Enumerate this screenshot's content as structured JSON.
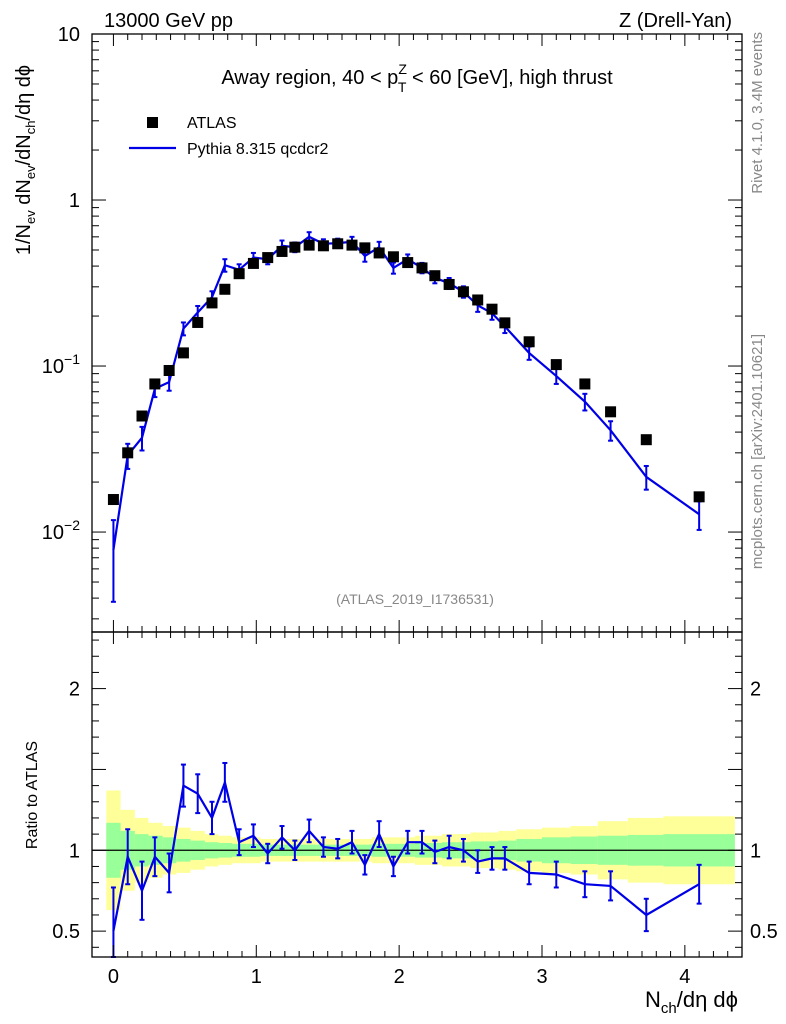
{
  "header": {
    "energy_label": "13000 GeV pp",
    "process_label": "Z (Drell-Yan)",
    "side_label_top": "Rivet 4.1.0,  3.4M events",
    "side_label_bottom": "mcplots.cern.ch [arXiv:2401.10621]",
    "analysis_id": "(ATLAS_2019_I1736531)"
  },
  "colors": {
    "mc_line": "#0000e6",
    "data_marker": "#000000",
    "band_outer": "#ffff99",
    "band_inner": "#99ff99",
    "watermark": "#888888"
  },
  "chart_data": [
    {
      "type": "scatter",
      "panel": "main",
      "title_parts": {
        "prefix": "Away region, 40 < p",
        "sup": "Z",
        "sub": "T",
        "suffix": " < 60 [GeV], high thrust"
      },
      "ylabel_parts": {
        "a": "1/N",
        "a_sub": "ev",
        "b": " dN",
        "b_sub": "ev",
        "c": "/dN",
        "c_sub": "ch",
        "d": "/dη dϕ"
      },
      "yscale": "log",
      "xlim": [
        -0.15,
        4.4
      ],
      "ylim": [
        0.0025,
        10
      ],
      "xticks": [
        0,
        1,
        2,
        3,
        4
      ],
      "yticks": [
        {
          "value": 10,
          "label": "10",
          "exp": ""
        },
        {
          "value": 1,
          "label": "1",
          "exp": ""
        },
        {
          "value": 0.1,
          "label": "10",
          "exp": "−1"
        },
        {
          "value": 0.01,
          "label": "10",
          "exp": "−2"
        }
      ],
      "legend_position": "top-left",
      "legend": [
        {
          "name": "ATLAS",
          "style": "square-marker"
        },
        {
          "name": "Pythia 8.315 qcdcr2",
          "style": "line"
        }
      ],
      "series": [
        {
          "name": "ATLAS",
          "x": [
            0.0,
            0.1,
            0.2,
            0.29,
            0.39,
            0.49,
            0.59,
            0.69,
            0.78,
            0.88,
            0.98,
            1.08,
            1.18,
            1.27,
            1.37,
            1.47,
            1.57,
            1.67,
            1.76,
            1.86,
            1.96,
            2.06,
            2.16,
            2.25,
            2.35,
            2.45,
            2.55,
            2.65,
            2.74,
            2.91,
            3.1,
            3.3,
            3.48,
            3.73,
            4.1
          ],
          "y": [
            0.0157,
            0.03,
            0.05,
            0.078,
            0.094,
            0.12,
            0.183,
            0.24,
            0.29,
            0.36,
            0.415,
            0.45,
            0.49,
            0.52,
            0.535,
            0.53,
            0.545,
            0.535,
            0.515,
            0.48,
            0.455,
            0.42,
            0.39,
            0.35,
            0.31,
            0.28,
            0.25,
            0.22,
            0.182,
            0.14,
            0.102,
            0.078,
            0.053,
            0.036,
            0.0163
          ]
        },
        {
          "name": "Pythia 8.315 qcdcr2",
          "x": [
            0.0,
            0.1,
            0.2,
            0.29,
            0.39,
            0.49,
            0.59,
            0.69,
            0.78,
            0.88,
            0.98,
            1.08,
            1.18,
            1.27,
            1.37,
            1.47,
            1.57,
            1.67,
            1.76,
            1.86,
            1.96,
            2.06,
            2.16,
            2.25,
            2.35,
            2.45,
            2.55,
            2.65,
            2.74,
            2.91,
            3.1,
            3.3,
            3.48,
            3.73,
            4.1
          ],
          "y": [
            0.0078,
            0.029,
            0.037,
            0.073,
            0.08,
            0.168,
            0.21,
            0.26,
            0.405,
            0.38,
            0.45,
            0.44,
            0.53,
            0.52,
            0.6,
            0.545,
            0.55,
            0.56,
            0.46,
            0.52,
            0.39,
            0.44,
            0.39,
            0.34,
            0.315,
            0.28,
            0.232,
            0.208,
            0.173,
            0.12,
            0.087,
            0.061,
            0.041,
            0.0215,
            0.0128
          ],
          "yerr": [
            0.004,
            0.005,
            0.006,
            0.008,
            0.009,
            0.015,
            0.02,
            0.022,
            0.035,
            0.03,
            0.03,
            0.03,
            0.04,
            0.035,
            0.04,
            0.035,
            0.035,
            0.04,
            0.035,
            0.04,
            0.03,
            0.03,
            0.028,
            0.025,
            0.024,
            0.022,
            0.02,
            0.018,
            0.015,
            0.011,
            0.009,
            0.007,
            0.0055,
            0.0035,
            0.0025
          ]
        }
      ]
    },
    {
      "type": "line",
      "panel": "ratio",
      "ylabel": "Ratio to ATLAS",
      "xlabel_parts": {
        "a": "N",
        "a_sub": "ch",
        "b": "/dη dϕ"
      },
      "xlim": [
        -0.15,
        4.4
      ],
      "ylim": [
        0.34,
        2.35
      ],
      "xticks": [
        0,
        1,
        2,
        3,
        4
      ],
      "yticks": [
        {
          "value": 2,
          "label": "2"
        },
        {
          "value": 1,
          "label": "1"
        },
        {
          "value": 0.5,
          "label": "0.5"
        }
      ],
      "reference_line": 1,
      "band_edges": [
        -0.05,
        0.05,
        0.15,
        0.245,
        0.345,
        0.44,
        0.54,
        0.64,
        0.735,
        0.83,
        0.93,
        1.03,
        1.13,
        1.225,
        1.32,
        1.42,
        1.52,
        1.62,
        1.715,
        1.81,
        1.91,
        2.01,
        2.11,
        2.205,
        2.3,
        2.4,
        2.5,
        2.6,
        2.695,
        2.82,
        3.0,
        3.2,
        3.39,
        3.6,
        3.85,
        4.35
      ],
      "band_outer": [
        0.37,
        0.25,
        0.2,
        0.17,
        0.15,
        0.14,
        0.12,
        0.1,
        0.09,
        0.08,
        0.08,
        0.07,
        0.07,
        0.07,
        0.07,
        0.07,
        0.07,
        0.07,
        0.07,
        0.08,
        0.08,
        0.08,
        0.09,
        0.09,
        0.1,
        0.1,
        0.11,
        0.11,
        0.12,
        0.13,
        0.14,
        0.15,
        0.18,
        0.2,
        0.21
      ],
      "band_inner": [
        0.17,
        0.12,
        0.1,
        0.09,
        0.08,
        0.07,
        0.06,
        0.05,
        0.045,
        0.04,
        0.04,
        0.035,
        0.035,
        0.035,
        0.035,
        0.035,
        0.035,
        0.035,
        0.035,
        0.04,
        0.04,
        0.04,
        0.045,
        0.045,
        0.05,
        0.05,
        0.055,
        0.055,
        0.06,
        0.07,
        0.08,
        0.085,
        0.09,
        0.095,
        0.1
      ],
      "series": [
        {
          "name": "Pythia 8.315 qcdcr2 / ATLAS",
          "x": [
            0.0,
            0.1,
            0.2,
            0.29,
            0.39,
            0.49,
            0.59,
            0.69,
            0.78,
            0.88,
            0.98,
            1.08,
            1.18,
            1.27,
            1.37,
            1.47,
            1.57,
            1.67,
            1.76,
            1.86,
            1.96,
            2.06,
            2.16,
            2.25,
            2.35,
            2.45,
            2.55,
            2.65,
            2.74,
            2.91,
            3.1,
            3.3,
            3.48,
            3.73,
            4.1
          ],
          "y": [
            0.5,
            0.96,
            0.75,
            0.96,
            0.86,
            1.4,
            1.35,
            1.2,
            1.42,
            1.05,
            1.09,
            0.98,
            1.08,
            1.0,
            1.12,
            1.02,
            1.01,
            1.05,
            0.91,
            1.1,
            0.9,
            1.05,
            1.05,
            0.99,
            1.02,
            1.0,
            0.93,
            0.95,
            0.95,
            0.86,
            0.85,
            0.79,
            0.78,
            0.6,
            0.79
          ],
          "yerr": [
            0.27,
            0.17,
            0.18,
            0.12,
            0.12,
            0.13,
            0.12,
            0.1,
            0.12,
            0.08,
            0.07,
            0.06,
            0.07,
            0.06,
            0.07,
            0.06,
            0.06,
            0.07,
            0.06,
            0.08,
            0.06,
            0.07,
            0.07,
            0.07,
            0.07,
            0.07,
            0.07,
            0.07,
            0.07,
            0.07,
            0.08,
            0.08,
            0.09,
            0.1,
            0.12
          ]
        }
      ]
    }
  ]
}
